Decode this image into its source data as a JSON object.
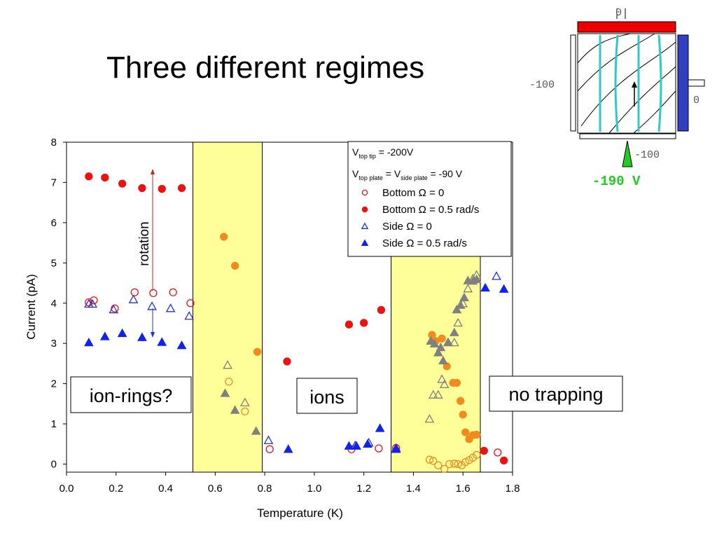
{
  "slide": {
    "title": "Three different regimes"
  },
  "diagram": {
    "labels": [
      "0",
      "-100",
      "0",
      "-100"
    ],
    "voltage_label": "-190 V",
    "colors": {
      "top_plate": "#ee0000",
      "side_plate": "#3040c0",
      "field_lines": "#30c8c8",
      "arrow": "#22cc22",
      "voltage_text": "#22cc22"
    }
  },
  "chart_data": {
    "type": "scatter",
    "xlabel": "Temperature (K)",
    "ylabel": "Current (pA)",
    "xlim": [
      0.0,
      1.8
    ],
    "ylim": [
      -0.2,
      8.0
    ],
    "xticks": [
      "0.0",
      "0.2",
      "0.4",
      "0.6",
      "0.8",
      "1.0",
      "1.2",
      "1.4",
      "1.6",
      "1.8"
    ],
    "yticks": [
      "0",
      "1",
      "2",
      "3",
      "4",
      "5",
      "6",
      "7",
      "8"
    ],
    "legend_position": "top-right",
    "legend_header": {
      "line1": {
        "main": "V",
        "sub": "top tip",
        "rest": " = -200V"
      },
      "line2": {
        "main1": "V",
        "sub1": "top plate",
        "mid": " = V",
        "sub2": "side plate",
        "rest": " = -90 V"
      }
    },
    "series": [
      {
        "name": "Bottom Ω = 0",
        "marker": "circle",
        "filled": false,
        "color": "#ee1111",
        "x": [
          0.09,
          0.11,
          0.195,
          0.275,
          0.35,
          0.43,
          0.5,
          0.82,
          1.15,
          1.26,
          1.33,
          1.74
        ],
        "y": [
          4.02,
          4.07,
          3.87,
          4.27,
          4.25,
          4.27,
          4.0,
          0.37,
          0.37,
          0.39,
          0.4,
          0.29
        ]
      },
      {
        "name": "Bottom Ω = 0.5 rad/s",
        "marker": "circle",
        "filled": true,
        "color": "#ee1111",
        "x": [
          0.09,
          0.155,
          0.225,
          0.305,
          0.385,
          0.465,
          0.89,
          1.14,
          1.2,
          1.27,
          1.685,
          1.765
        ],
        "y": [
          7.15,
          7.12,
          6.97,
          6.86,
          6.84,
          6.86,
          2.55,
          3.47,
          3.51,
          3.83,
          0.33,
          0.09
        ]
      },
      {
        "name": "Side Ω = 0",
        "marker": "triangle",
        "filled": false,
        "color": "#2233cc",
        "x": [
          0.09,
          0.105,
          0.19,
          0.27,
          0.345,
          0.42,
          0.495,
          0.815,
          1.165,
          1.22,
          1.33,
          1.735
        ],
        "y": [
          3.98,
          3.98,
          3.84,
          4.09,
          3.92,
          3.87,
          3.68,
          0.59,
          0.46,
          0.53,
          0.4,
          4.67
        ]
      },
      {
        "name": "Side Ω = 0.5 rad/s",
        "marker": "triangle",
        "filled": true,
        "color": "#1122ee",
        "x": [
          0.09,
          0.155,
          0.225,
          0.305,
          0.385,
          0.465,
          0.895,
          1.14,
          1.17,
          1.215,
          1.265,
          1.33,
          1.69,
          1.765
        ],
        "y": [
          3.02,
          3.17,
          3.25,
          3.15,
          3.03,
          2.95,
          0.37,
          0.45,
          0.45,
          0.5,
          0.89,
          0.37,
          4.38,
          4.35
        ]
      },
      {
        "name": "",
        "marker": "circle",
        "filled": true,
        "color": "#f08c1e",
        "x": [
          0.635,
          0.68,
          0.77,
          1.475,
          1.49,
          1.515,
          1.535,
          1.56,
          1.575,
          1.59,
          1.6,
          1.61,
          1.625,
          1.64,
          1.655
        ],
        "y": [
          5.65,
          4.93,
          2.79,
          3.21,
          3.06,
          3.12,
          2.43,
          2.02,
          2.02,
          1.57,
          1.23,
          0.79,
          0.62,
          0.72,
          0.73
        ]
      },
      {
        "name": "",
        "marker": "circle",
        "filled": false,
        "color": "#f08c1e",
        "x": [
          0.655,
          0.72,
          1.465,
          1.48,
          1.5,
          1.525,
          1.545,
          1.565,
          1.58,
          1.595,
          1.61,
          1.625,
          1.64,
          1.655
        ],
        "y": [
          2.05,
          1.31,
          0.11,
          0.08,
          -0.03,
          -0.12,
          0.0,
          0.01,
          0.0,
          -0.03,
          0.05,
          0.1,
          0.16,
          0.23
        ]
      },
      {
        "name": "",
        "marker": "triangle",
        "filled": true,
        "color": "#808080",
        "x": [
          0.64,
          0.68,
          0.765,
          1.47,
          1.485,
          1.5,
          1.51,
          1.52,
          1.54,
          1.565,
          1.575,
          1.59,
          1.605,
          1.62,
          1.64,
          1.655
        ],
        "y": [
          1.76,
          1.34,
          0.82,
          3.06,
          2.99,
          2.77,
          2.9,
          2.57,
          3.03,
          3.27,
          3.84,
          3.95,
          4.14,
          4.56,
          4.55,
          4.59
        ]
      },
      {
        "name": "",
        "marker": "triangle",
        "filled": false,
        "color": "#808080",
        "x": [
          0.65,
          0.72,
          1.465,
          1.48,
          1.5,
          1.515,
          1.525,
          1.54,
          1.565,
          1.58,
          1.6,
          1.62,
          1.64,
          1.655
        ],
        "y": [
          2.46,
          1.53,
          1.12,
          1.72,
          1.72,
          2.11,
          1.98,
          3.02,
          3.02,
          3.51,
          3.99,
          4.36,
          4.61,
          4.7
        ]
      }
    ],
    "highlight_regions": [
      {
        "x0": 0.51,
        "x1": 0.79,
        "color": "#ffff99"
      },
      {
        "x0": 1.31,
        "x1": 1.67,
        "color": "#ffff99"
      }
    ],
    "annotations": {
      "rotation": "rotation",
      "regimes": [
        "ion-rings?",
        "ions",
        "no trapping"
      ]
    }
  }
}
